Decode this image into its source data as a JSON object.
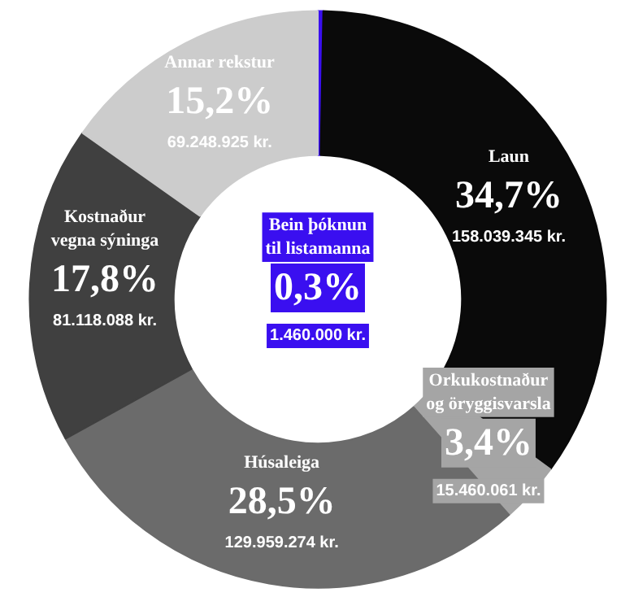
{
  "chart_data": {
    "type": "donut",
    "categories": [
      "Bein þóknun\ntil listamanna",
      "Laun",
      "Orkukostnaður\nog öryggisvarsla",
      "Húsaleiga",
      "Kostnaður\nvegna sýninga",
      "Annar rekstur"
    ],
    "values": [
      0.3,
      34.7,
      3.4,
      28.5,
      17.8,
      15.2
    ],
    "colors": [
      "#3a0ff0",
      "#0a0a0a",
      "#a5a5a5",
      "#6b6b6b",
      "#404040",
      "#cccccc"
    ],
    "value_labels": [
      "0,3%",
      "34,7%",
      "3,4%",
      "28,5%",
      "17,8%",
      "15,2%"
    ],
    "annotations": [
      "1.460.000 kr.",
      "158.039.345 kr.",
      "15.460.061 kr.",
      "129.959.274 kr.",
      "81.118.088 kr.",
      "69.248.925 kr."
    ],
    "legend": false
  }
}
